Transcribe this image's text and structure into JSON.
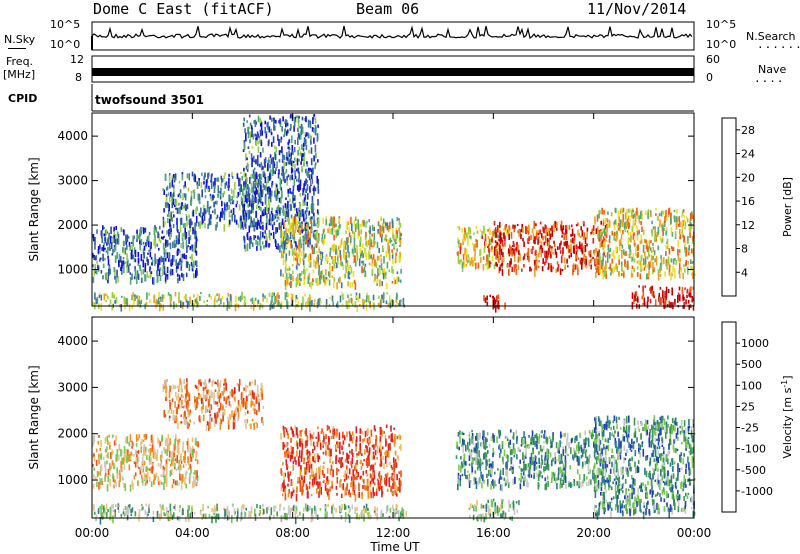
{
  "header": {
    "station": "Dome C East (fitACF)",
    "beam": "Beam 06",
    "date": "11/Nov/2014"
  },
  "side_labels": {
    "nsky": "N.Sky",
    "freq_top": "Freq.",
    "freq_unit": "[MHz]",
    "cpid": "CPID",
    "nsearch": "N.Search",
    "nave": "Nave",
    "cpid_value": "twofsound 3501"
  },
  "status_axes": {
    "noise_left_ticks": [
      "10^5",
      "10^0"
    ],
    "noise_right_ticks": [
      "10^5",
      "10^0"
    ],
    "freq_left_ticks": [
      "12",
      "8"
    ],
    "freq_right_ticks": [
      "60",
      "0"
    ]
  },
  "time_axis": {
    "label": "Time UT",
    "ticks": [
      "00:00",
      "04:00",
      "08:00",
      "12:00",
      "16:00",
      "20:00",
      "00:00"
    ]
  },
  "colors": {
    "power": [
      "#1010d8",
      "#2a4aa8",
      "#3c78a0",
      "#52a878",
      "#9ad040",
      "#f0e020",
      "#f0a020",
      "#f06010",
      "#e02020",
      "#c00000"
    ],
    "velocity": [
      "#e02020",
      "#f05010",
      "#f09020",
      "#f0c070",
      "#c8c8c8",
      "#78c850",
      "#3c9a50",
      "#2c7a8a",
      "#1e40b8"
    ]
  },
  "chart_data": [
    {
      "type": "heatmap",
      "title": "",
      "xlabel": "Time UT",
      "ylabel": "Slant Range [km]",
      "x_ticks": [
        "00:00",
        "04:00",
        "08:00",
        "12:00",
        "16:00",
        "20:00",
        "00:00"
      ],
      "xlim_hours": [
        0,
        24
      ],
      "y_ticks": [
        1000,
        2000,
        3000,
        4000
      ],
      "ylim": [
        180,
        4520
      ],
      "colorbar": {
        "label": "Power [dB]",
        "ticks": [
          4,
          8,
          12,
          16,
          20,
          24,
          28
        ],
        "range": [
          0,
          30
        ]
      },
      "regions": [
        {
          "t": [
            0.0,
            4.2
          ],
          "r": [
            800,
            2000
          ],
          "level": 0.2
        },
        {
          "t": [
            2.8,
            6.8
          ],
          "r": [
            2000,
            3200
          ],
          "level": 0.25
        },
        {
          "t": [
            6.0,
            9.0
          ],
          "r": [
            1500,
            4500
          ],
          "level": 0.2
        },
        {
          "t": [
            7.5,
            12.3
          ],
          "r": [
            700,
            2200
          ],
          "level": 0.5
        },
        {
          "t": [
            0.0,
            12.5
          ],
          "r": [
            200,
            500
          ],
          "level": 0.45
        },
        {
          "t": [
            14.5,
            16.5
          ],
          "r": [
            1100,
            2000
          ],
          "level": 0.6
        },
        {
          "t": [
            16.0,
            20.5
          ],
          "r": [
            1000,
            2100
          ],
          "level": 0.85
        },
        {
          "t": [
            20.0,
            24.0
          ],
          "r": [
            900,
            2400
          ],
          "level": 0.55
        },
        {
          "t": [
            15.5,
            16.5
          ],
          "r": [
            200,
            450
          ],
          "level": 0.95
        },
        {
          "t": [
            21.5,
            24.0
          ],
          "r": [
            200,
            650
          ],
          "level": 0.95
        }
      ]
    },
    {
      "type": "heatmap",
      "title": "",
      "xlabel": "Time UT",
      "ylabel": "Slant Range [km]",
      "x_ticks": [
        "00:00",
        "04:00",
        "08:00",
        "12:00",
        "16:00",
        "20:00",
        "00:00"
      ],
      "xlim_hours": [
        0,
        24
      ],
      "y_ticks": [
        1000,
        2000,
        3000,
        4000
      ],
      "ylim": [
        180,
        4520
      ],
      "colorbar": {
        "label": "Velocity [m s^-1]",
        "ticks": [
          "1000",
          "500",
          "100",
          "25",
          "-25",
          "-100",
          "-500",
          "-1000"
        ]
      },
      "regions": [
        {
          "t": [
            0.0,
            4.2
          ],
          "r": [
            900,
            2000
          ],
          "level": 0.4
        },
        {
          "t": [
            2.8,
            6.8
          ],
          "r": [
            2200,
            3200
          ],
          "level": 0.3
        },
        {
          "t": [
            7.5,
            12.3
          ],
          "r": [
            700,
            2200
          ],
          "level": 0.15
        },
        {
          "t": [
            0.0,
            12.5
          ],
          "r": [
            200,
            500
          ],
          "level": 0.6
        },
        {
          "t": [
            14.5,
            20.5
          ],
          "r": [
            900,
            2100
          ],
          "level": 0.72
        },
        {
          "t": [
            20.0,
            24.0
          ],
          "r": [
            300,
            2400
          ],
          "level": 0.75
        },
        {
          "t": [
            15.0,
            17.0
          ],
          "r": [
            200,
            600
          ],
          "level": 0.6
        }
      ]
    }
  ]
}
